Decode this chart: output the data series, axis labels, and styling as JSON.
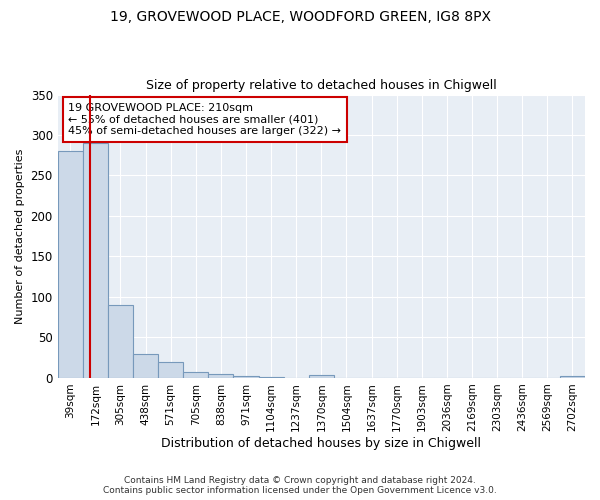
{
  "title_line1": "19, GROVEWOOD PLACE, WOODFORD GREEN, IG8 8PX",
  "title_line2": "Size of property relative to detached houses in Chigwell",
  "xlabel": "Distribution of detached houses by size in Chigwell",
  "ylabel": "Number of detached properties",
  "bar_labels": [
    "39sqm",
    "172sqm",
    "305sqm",
    "438sqm",
    "571sqm",
    "705sqm",
    "838sqm",
    "971sqm",
    "1104sqm",
    "1237sqm",
    "1370sqm",
    "1504sqm",
    "1637sqm",
    "1770sqm",
    "1903sqm",
    "2036sqm",
    "2169sqm",
    "2303sqm",
    "2436sqm",
    "2569sqm",
    "2702sqm"
  ],
  "bar_values": [
    280,
    290,
    90,
    30,
    19,
    7,
    5,
    2,
    1,
    0,
    4,
    0,
    0,
    0,
    0,
    0,
    0,
    0,
    0,
    0,
    2
  ],
  "bar_color": "#ccd9e8",
  "bar_edge_color": "#7799bb",
  "annotation_text": "19 GROVEWOOD PLACE: 210sqm\n← 55% of detached houses are smaller (401)\n45% of semi-detached houses are larger (322) →",
  "annotation_box_facecolor": "#ffffff",
  "annotation_box_edgecolor": "#cc0000",
  "ylim": [
    0,
    350
  ],
  "yticks": [
    0,
    50,
    100,
    150,
    200,
    250,
    300,
    350
  ],
  "grid_color": "#ffffff",
  "bg_color": "#e8eef5",
  "footer_line1": "Contains HM Land Registry data © Crown copyright and database right 2024.",
  "footer_line2": "Contains public sector information licensed under the Open Government Licence v3.0."
}
